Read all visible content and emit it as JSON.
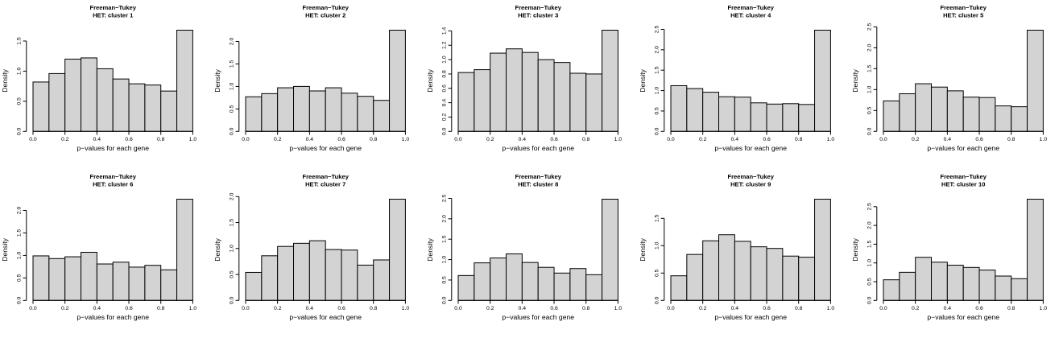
{
  "figure": {
    "layout": "2x5 grid of histograms",
    "test_name": "Freeman−Tukey",
    "xlabel": "p−values for each gene",
    "ylabel": "Density",
    "x_tick_labels": [
      "0.0",
      "0.2",
      "0.4",
      "0.6",
      "0.8",
      "1.0"
    ],
    "bin_start": 0.0,
    "bin_width": 0.1,
    "n_bins": 10,
    "colors": {
      "bar_fill": "#d3d3d3",
      "bar_border": "#000000",
      "axis": "#000000",
      "background": "#ffffff"
    }
  },
  "chart_data": [
    {
      "type": "bar",
      "title": "Freeman−Tukey",
      "subtitle": "HET: cluster 1",
      "xlabel": "p−values for each gene",
      "ylabel": "Density",
      "bin_edges": [
        0.0,
        0.1,
        0.2,
        0.3,
        0.4,
        0.5,
        0.6,
        0.7,
        0.8,
        0.9,
        1.0
      ],
      "values": [
        0.82,
        0.96,
        1.2,
        1.22,
        1.04,
        0.87,
        0.79,
        0.77,
        0.67,
        1.68
      ],
      "y_tick_labels": [
        "0.0",
        "0.5",
        "1.0",
        "1.5"
      ],
      "ylim": [
        0,
        1.68
      ],
      "grid": false
    },
    {
      "type": "bar",
      "title": "Freeman−Tukey",
      "subtitle": "HET: cluster 2",
      "xlabel": "p−values for each gene",
      "ylabel": "Density",
      "bin_edges": [
        0.0,
        0.1,
        0.2,
        0.3,
        0.4,
        0.5,
        0.6,
        0.7,
        0.8,
        0.9,
        1.0
      ],
      "values": [
        0.77,
        0.84,
        0.97,
        1.0,
        0.9,
        0.97,
        0.85,
        0.78,
        0.69,
        2.25
      ],
      "y_tick_labels": [
        "0.0",
        "0.5",
        "1.0",
        "1.5",
        "2.0"
      ],
      "ylim": [
        0,
        2.25
      ],
      "grid": false
    },
    {
      "type": "bar",
      "title": "Freeman−Tukey",
      "subtitle": "HET: cluster 3",
      "xlabel": "p−values for each gene",
      "ylabel": "Density",
      "bin_edges": [
        0.0,
        0.1,
        0.2,
        0.3,
        0.4,
        0.5,
        0.6,
        0.7,
        0.8,
        0.9,
        1.0
      ],
      "values": [
        0.82,
        0.86,
        1.09,
        1.15,
        1.1,
        1.0,
        0.96,
        0.81,
        0.8,
        1.41
      ],
      "y_tick_labels": [
        "0.0",
        "0.2",
        "0.4",
        "0.6",
        "0.8",
        "1.0",
        "1.2",
        "1.4"
      ],
      "ylim": [
        0,
        1.41
      ],
      "grid": false
    },
    {
      "type": "bar",
      "title": "Freeman−Tukey",
      "subtitle": "HET: cluster 4",
      "xlabel": "p−values for each gene",
      "ylabel": "Density",
      "bin_edges": [
        0.0,
        0.1,
        0.2,
        0.3,
        0.4,
        0.5,
        0.6,
        0.7,
        0.8,
        0.9,
        1.0
      ],
      "values": [
        1.12,
        1.05,
        0.96,
        0.85,
        0.84,
        0.7,
        0.67,
        0.68,
        0.66,
        2.48
      ],
      "y_tick_labels": [
        "0.0",
        "0.5",
        "1.0",
        "1.5",
        "2.0",
        "2.5"
      ],
      "ylim": [
        0,
        2.48
      ],
      "grid": false
    },
    {
      "type": "bar",
      "title": "Freeman−Tukey",
      "subtitle": "HET: cluster 5",
      "xlabel": "p−values for each gene",
      "ylabel": "Density",
      "bin_edges": [
        0.0,
        0.1,
        0.2,
        0.3,
        0.4,
        0.5,
        0.6,
        0.7,
        0.8,
        0.9,
        1.0
      ],
      "values": [
        0.73,
        0.9,
        1.14,
        1.06,
        0.97,
        0.82,
        0.81,
        0.61,
        0.59,
        2.42
      ],
      "y_tick_labels": [
        "0.0",
        "0.5",
        "1.0",
        "1.5",
        "2.0",
        "2.5"
      ],
      "ylim": [
        0,
        2.42
      ],
      "grid": false
    },
    {
      "type": "bar",
      "title": "Freeman−Tukey",
      "subtitle": "HET: cluster 6",
      "xlabel": "p−values for each gene",
      "ylabel": "Density",
      "bin_edges": [
        0.0,
        0.1,
        0.2,
        0.3,
        0.4,
        0.5,
        0.6,
        0.7,
        0.8,
        0.9,
        1.0
      ],
      "values": [
        0.99,
        0.93,
        0.97,
        1.07,
        0.81,
        0.85,
        0.74,
        0.78,
        0.68,
        2.25
      ],
      "y_tick_labels": [
        "0.0",
        "0.5",
        "1.0",
        "1.5",
        "2.0"
      ],
      "ylim": [
        0,
        2.25
      ],
      "grid": false
    },
    {
      "type": "bar",
      "title": "Freeman−Tukey",
      "subtitle": "HET: cluster 7",
      "xlabel": "p−values for each gene",
      "ylabel": "Density",
      "bin_edges": [
        0.0,
        0.1,
        0.2,
        0.3,
        0.4,
        0.5,
        0.6,
        0.7,
        0.8,
        0.9,
        1.0
      ],
      "values": [
        0.54,
        0.86,
        1.04,
        1.1,
        1.15,
        0.98,
        0.97,
        0.68,
        0.78,
        1.95
      ],
      "y_tick_labels": [
        "0.0",
        "0.5",
        "1.0",
        "1.5",
        "2.0"
      ],
      "ylim": [
        0,
        1.95
      ],
      "grid": false
    },
    {
      "type": "bar",
      "title": "Freeman−Tukey",
      "subtitle": "HET: cluster 8",
      "xlabel": "p−values for each gene",
      "ylabel": "Density",
      "bin_edges": [
        0.0,
        0.1,
        0.2,
        0.3,
        0.4,
        0.5,
        0.6,
        0.7,
        0.8,
        0.9,
        1.0
      ],
      "values": [
        0.61,
        0.92,
        1.04,
        1.14,
        0.93,
        0.81,
        0.67,
        0.78,
        0.63,
        2.48
      ],
      "y_tick_labels": [
        "0.0",
        "0.5",
        "1.0",
        "1.5",
        "2.0",
        "2.5"
      ],
      "ylim": [
        0,
        2.48
      ],
      "grid": false
    },
    {
      "type": "bar",
      "title": "Freeman−Tukey",
      "subtitle": "HET: cluster 9",
      "xlabel": "p−values for each gene",
      "ylabel": "Density",
      "bin_edges": [
        0.0,
        0.1,
        0.2,
        0.3,
        0.4,
        0.5,
        0.6,
        0.7,
        0.8,
        0.9,
        1.0
      ],
      "values": [
        0.45,
        0.84,
        1.09,
        1.2,
        1.08,
        0.98,
        0.95,
        0.81,
        0.79,
        1.85
      ],
      "y_tick_labels": [
        "0.0",
        "0.5",
        "1.0",
        "1.5"
      ],
      "ylim": [
        0,
        1.85
      ],
      "grid": false
    },
    {
      "type": "bar",
      "title": "Freeman−Tukey",
      "subtitle": "HET: cluster 10",
      "xlabel": "p−values for each gene",
      "ylabel": "Density",
      "bin_edges": [
        0.0,
        0.1,
        0.2,
        0.3,
        0.4,
        0.5,
        0.6,
        0.7,
        0.8,
        0.9,
        1.0
      ],
      "values": [
        0.55,
        0.75,
        1.15,
        1.02,
        0.94,
        0.88,
        0.81,
        0.65,
        0.58,
        2.7
      ],
      "y_tick_labels": [
        "0.0",
        "0.5",
        "1.0",
        "1.5",
        "2.0",
        "2.5"
      ],
      "ylim": [
        0,
        2.7
      ],
      "grid": false
    }
  ]
}
